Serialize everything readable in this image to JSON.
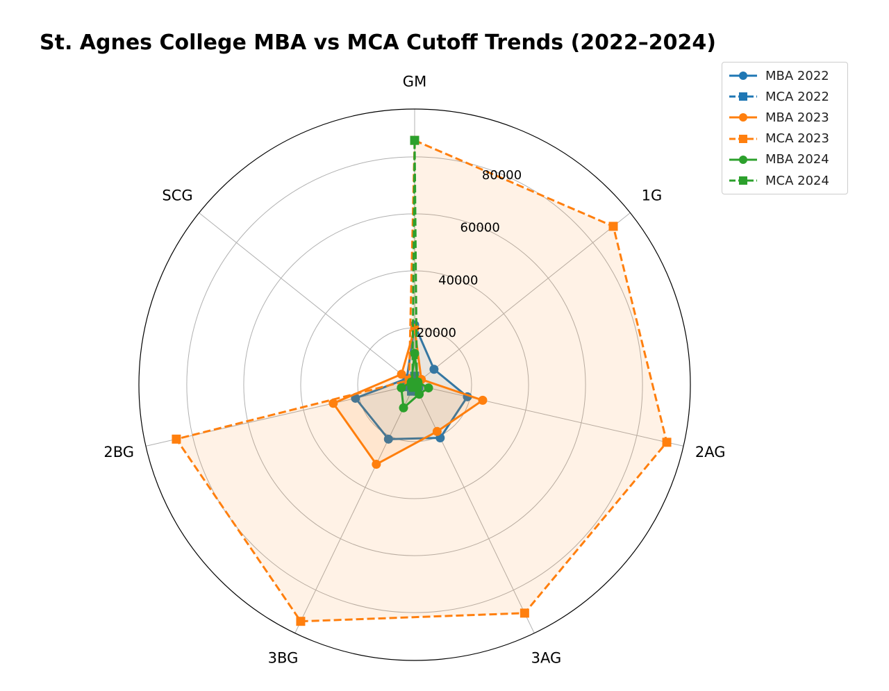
{
  "chart_data": {
    "type": "radar",
    "title": "St. Agnes College MBA vs MCA Cutoff Trends (2022–2024)",
    "categories": [
      "GM",
      "1G",
      "2AG",
      "3AG",
      "3BG",
      "2BG",
      "SCG"
    ],
    "rticks": [
      "20000",
      "40000",
      "60000",
      "80000"
    ],
    "rtick_values": [
      20000,
      40000,
      60000,
      80000
    ],
    "rlim": [
      0,
      96800
    ],
    "grid": true,
    "legend_position": "top-right",
    "series": [
      {
        "name": "MBA 2022",
        "color": "#1f77b4",
        "marker": "circle",
        "dashed": false,
        "values": [
          21000,
          8700,
          19000,
          20700,
          21200,
          21300,
          3500
        ]
      },
      {
        "name": "MCA 2022",
        "color": "#1f77b4",
        "marker": "square",
        "dashed": true,
        "values": [
          3000,
          1500,
          1500,
          2500,
          2500,
          3000,
          2500
        ]
      },
      {
        "name": "MBA 2023",
        "color": "#ff7f0e",
        "marker": "circle",
        "dashed": false,
        "values": [
          19800,
          3000,
          24500,
          18200,
          31000,
          29300,
          5900
        ]
      },
      {
        "name": "MCA 2023",
        "color": "#ff7f0e",
        "marker": "square",
        "dashed": true,
        "values": [
          85800,
          89200,
          90800,
          89000,
          92200,
          85800,
          2500
        ]
      },
      {
        "name": "MBA 2024",
        "color": "#2ca02c",
        "marker": "circle",
        "dashed": false,
        "values": [
          11000,
          1500,
          5000,
          3700,
          9000,
          4800,
          1500
        ]
      },
      {
        "name": "MCA 2024",
        "color": "#2ca02c",
        "marker": "square",
        "dashed": true,
        "values": [
          85800,
          1000,
          1000,
          1000,
          1000,
          1000,
          1000
        ]
      }
    ]
  }
}
